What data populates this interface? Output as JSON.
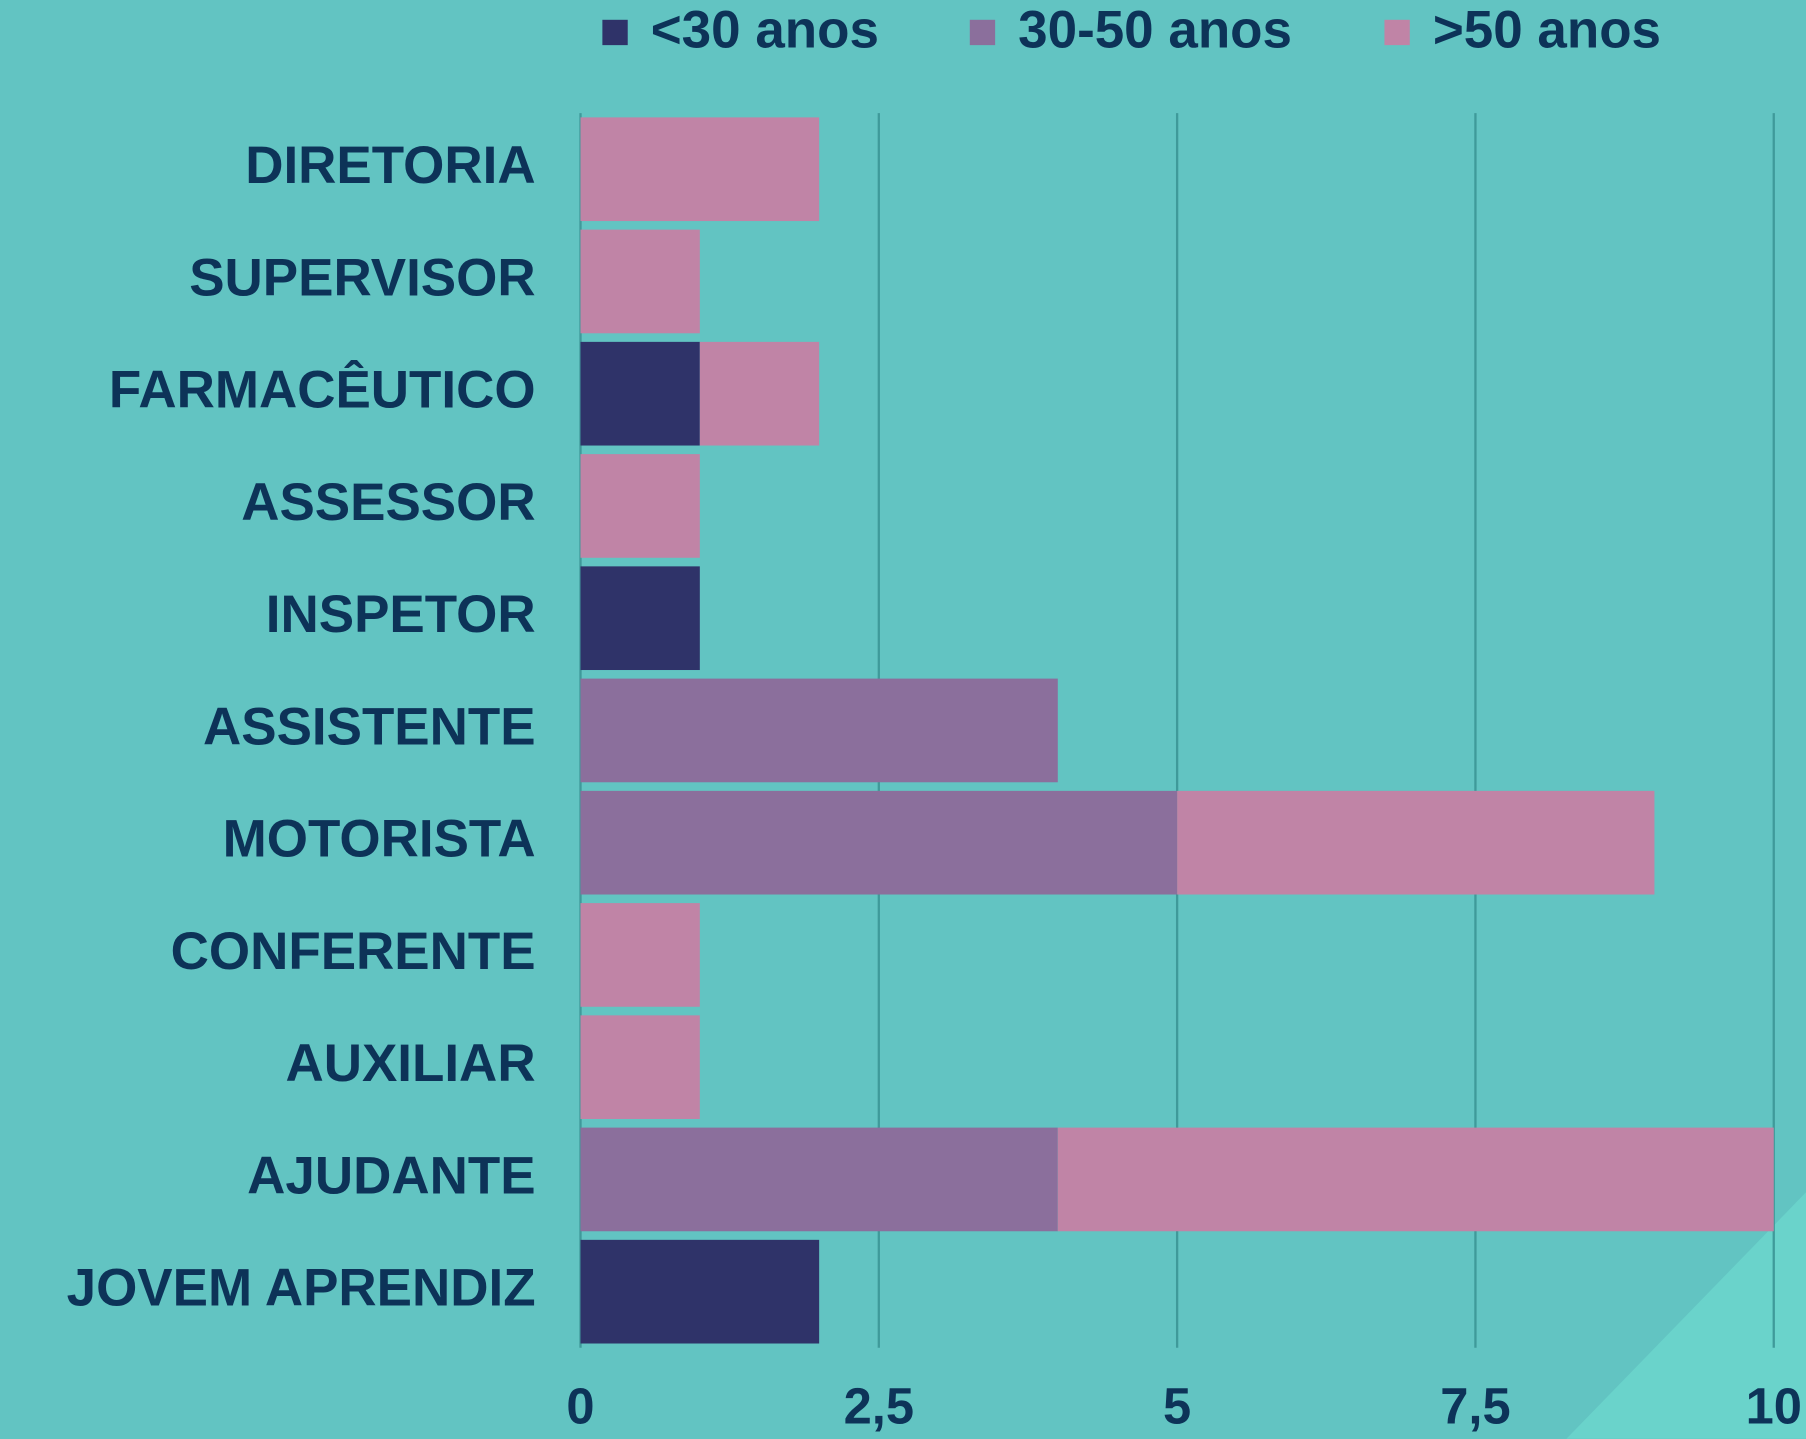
{
  "chart_data": {
    "type": "stacked-bar-horizontal",
    "categories": [
      "DIRETORIA",
      "SUPERVISOR",
      "FARMACÊUTICO",
      "ASSESSOR",
      "INSPETOR",
      "ASSISTENTE",
      "MOTORISTA",
      "CONFERENTE",
      "AUXILIAR",
      "AJUDANTE",
      "JOVEM APRENDIZ"
    ],
    "series": [
      {
        "name": "<30 anos",
        "color": "#2f3369",
        "values": [
          0,
          0,
          1,
          0,
          1,
          0,
          0,
          0,
          0,
          0,
          2
        ]
      },
      {
        "name": "30-50 anos",
        "color": "#8b6f9c",
        "values": [
          0,
          0,
          0,
          0,
          0,
          4,
          5,
          0,
          0,
          4,
          0
        ]
      },
      {
        "name": ">50 anos",
        "color": "#c084a6",
        "values": [
          2,
          1,
          1,
          1,
          0,
          0,
          4,
          1,
          1,
          6,
          0
        ]
      }
    ],
    "xlim": [
      0,
      10
    ],
    "xticks": [
      0,
      {
        "value": 2.5,
        "label": "2,5"
      },
      5,
      {
        "value": 7.5,
        "label": "7,5"
      },
      10
    ],
    "grid": true,
    "legend": "top"
  }
}
